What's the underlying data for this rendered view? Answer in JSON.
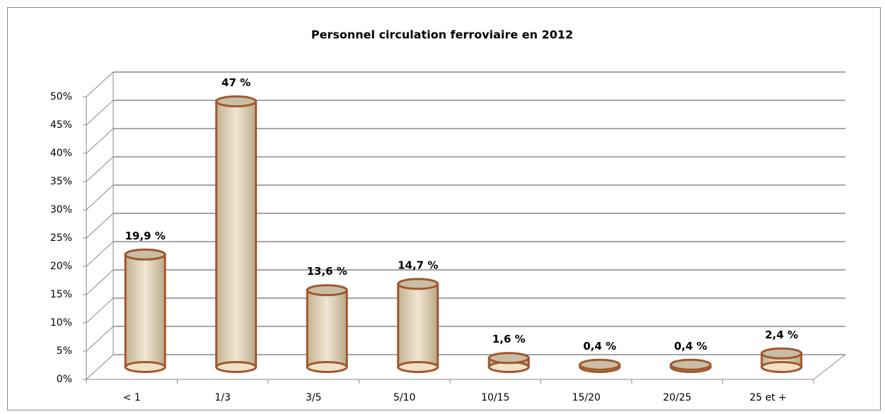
{
  "chart_data": {
    "type": "bar3d",
    "title": "Personnel circulation ferroviaire en 2012",
    "categories": [
      "< 1",
      "1/3",
      "3/5",
      "5/10",
      "10/15",
      "15/20",
      "20/25",
      "25 et +"
    ],
    "values": [
      19.9,
      47,
      13.6,
      14.7,
      1.6,
      0.4,
      0.4,
      2.4
    ],
    "value_labels": [
      "19,9 %",
      "47 %",
      "13,6 %",
      "14,7 %",
      "1,6 %",
      "0,4 %",
      "0,4 %",
      "2,4 %"
    ],
    "color": "#a0582e",
    "ylim": [
      0,
      50
    ],
    "yticks": [
      {
        "value": 0,
        "label": "0%"
      },
      {
        "value": 5,
        "label": "5%"
      },
      {
        "value": 10,
        "label": "10%"
      },
      {
        "value": 15,
        "label": "15%"
      },
      {
        "value": 20,
        "label": "20%"
      },
      {
        "value": 25,
        "label": "25%"
      },
      {
        "value": 30,
        "label": "30%"
      },
      {
        "value": 35,
        "label": "35%"
      },
      {
        "value": 40,
        "label": "40%"
      },
      {
        "value": 45,
        "label": "45%"
      },
      {
        "value": 50,
        "label": "50%"
      }
    ],
    "grid": true
  }
}
